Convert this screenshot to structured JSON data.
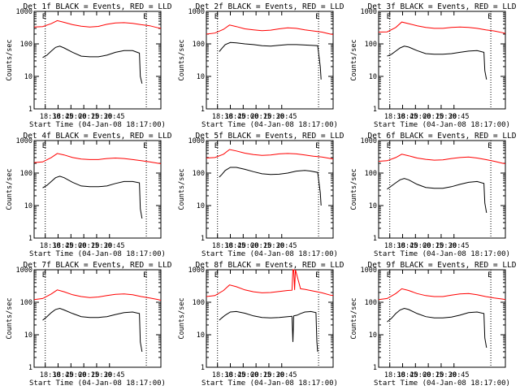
{
  "figure": {
    "xlabel": "Start Time (04-Jan-08 18:17:00)",
    "ylabel": "Counts/sec",
    "marker": "E",
    "x_ticks": [
      "18:30",
      "18:45",
      "20:00",
      "20:15",
      "20:30",
      "20:45"
    ]
  },
  "chart_data": [
    {
      "type": "line",
      "title": "Det 1f BLACK = Events, RED = LLD",
      "xlabel": "Start Time (04-Jan-08 18:17:00)",
      "ylabel": "Counts/sec",
      "yscale": "log",
      "ylim": [
        1,
        1000
      ],
      "y_ticks": [
        "1",
        "10",
        "100",
        "1000"
      ],
      "x_ticks": [
        "18:30",
        "18:45",
        "20:00",
        "20:15",
        "20:30",
        "20:45"
      ],
      "xlim_min": [
        0,
        148
      ],
      "event_markers_min": [
        13,
        131
      ],
      "grid": false,
      "series": [
        {
          "color": "#ff0000",
          "x_min": [
            0,
            10,
            20,
            27,
            35,
            45,
            55,
            65,
            75,
            85,
            95,
            105,
            115,
            125,
            135,
            145,
            148
          ],
          "values": [
            330,
            340,
            420,
            520,
            460,
            390,
            350,
            330,
            345,
            400,
            440,
            450,
            430,
            390,
            360,
            310,
            300
          ]
        },
        {
          "color": "#000000",
          "x_min": [
            10,
            15,
            20,
            25,
            30,
            35,
            45,
            55,
            65,
            75,
            85,
            95,
            105,
            115,
            123,
            124,
            126
          ],
          "values": [
            38,
            45,
            60,
            78,
            85,
            75,
            55,
            42,
            40,
            40,
            45,
            55,
            62,
            62,
            52,
            10,
            6
          ]
        }
      ]
    },
    {
      "type": "line",
      "title": "Det 2f BLACK = Events, RED = LLD",
      "xlabel": "Start Time (04-Jan-08 18:17:00)",
      "ylabel": "Counts/sec",
      "yscale": "log",
      "ylim": [
        1,
        1000
      ],
      "y_ticks": [
        "1",
        "10",
        "100",
        "1000"
      ],
      "x_ticks": [
        "18:30",
        "18:45",
        "20:00",
        "20:15",
        "20:30",
        "20:45"
      ],
      "xlim_min": [
        0,
        148
      ],
      "event_markers_min": [
        13,
        131
      ],
      "grid": false,
      "series": [
        {
          "color": "#ff0000",
          "x_min": [
            0,
            10,
            20,
            27,
            35,
            45,
            55,
            65,
            75,
            85,
            95,
            105,
            115,
            125,
            135,
            145,
            148
          ],
          "values": [
            200,
            215,
            280,
            380,
            340,
            290,
            270,
            255,
            265,
            290,
            310,
            300,
            270,
            250,
            230,
            200,
            195
          ]
        },
        {
          "color": "#000000",
          "x_min": [
            15,
            18,
            22,
            28,
            35,
            45,
            55,
            65,
            75,
            85,
            95,
            105,
            115,
            122,
            130,
            133,
            134
          ],
          "values": [
            58,
            72,
            95,
            110,
            108,
            100,
            95,
            88,
            85,
            90,
            95,
            95,
            92,
            90,
            88,
            20,
            8
          ]
        }
      ]
    },
    {
      "type": "line",
      "title": "Det 3f BLACK = Events, RED = LLD",
      "xlabel": "Start Time (04-Jan-08 18:17:00)",
      "ylabel": "Counts/sec",
      "yscale": "log",
      "ylim": [
        1,
        1000
      ],
      "y_ticks": [
        "1",
        "10",
        "100",
        "1000"
      ],
      "x_ticks": [
        "18:30",
        "18:45",
        "20:00",
        "20:15",
        "20:30",
        "20:45"
      ],
      "xlim_min": [
        0,
        148
      ],
      "event_markers_min": [
        13,
        131
      ],
      "grid": false,
      "series": [
        {
          "color": "#ff0000",
          "x_min": [
            0,
            10,
            20,
            27,
            35,
            45,
            55,
            65,
            75,
            85,
            95,
            105,
            115,
            125,
            135,
            145,
            148
          ],
          "values": [
            230,
            235,
            320,
            470,
            420,
            360,
            320,
            300,
            300,
            320,
            330,
            320,
            300,
            270,
            250,
            220,
            210
          ]
        },
        {
          "color": "#000000",
          "x_min": [
            10,
            15,
            20,
            25,
            30,
            35,
            45,
            55,
            65,
            75,
            85,
            95,
            105,
            115,
            123,
            124,
            126
          ],
          "values": [
            42,
            48,
            60,
            75,
            85,
            80,
            62,
            50,
            48,
            48,
            50,
            55,
            60,
            62,
            55,
            15,
            8
          ]
        }
      ]
    },
    {
      "type": "line",
      "title": "Det 4f BLACK = Events, RED = LLD",
      "xlabel": "Start Time (04-Jan-08 18:17:00)",
      "ylabel": "Counts/sec",
      "yscale": "log",
      "ylim": [
        1,
        1000
      ],
      "y_ticks": [
        "1",
        "10",
        "100",
        "1000"
      ],
      "x_ticks": [
        "18:30",
        "18:45",
        "20:00",
        "20:15",
        "20:30",
        "20:45"
      ],
      "xlim_min": [
        0,
        148
      ],
      "event_markers_min": [
        13,
        131
      ],
      "grid": false,
      "series": [
        {
          "color": "#ff0000",
          "x_min": [
            0,
            10,
            20,
            27,
            35,
            45,
            55,
            65,
            75,
            85,
            95,
            105,
            115,
            125,
            135,
            145,
            148
          ],
          "values": [
            210,
            220,
            300,
            400,
            360,
            300,
            270,
            260,
            260,
            280,
            290,
            280,
            260,
            240,
            220,
            200,
            195
          ]
        },
        {
          "color": "#000000",
          "x_min": [
            10,
            15,
            20,
            25,
            30,
            35,
            45,
            55,
            65,
            75,
            85,
            95,
            105,
            115,
            123,
            124,
            126
          ],
          "values": [
            35,
            42,
            55,
            72,
            80,
            72,
            52,
            40,
            38,
            38,
            40,
            48,
            55,
            55,
            50,
            8,
            4
          ]
        }
      ]
    },
    {
      "type": "line",
      "title": "Det 5f BLACK = Events, RED = LLD",
      "xlabel": "Start Time (04-Jan-08 18:17:00)",
      "ylabel": "Counts/sec",
      "yscale": "log",
      "ylim": [
        1,
        1000
      ],
      "y_ticks": [
        "1",
        "10",
        "100",
        "1000"
      ],
      "x_ticks": [
        "18:30",
        "18:45",
        "20:00",
        "20:15",
        "20:30",
        "20:45"
      ],
      "xlim_min": [
        0,
        148
      ],
      "event_markers_min": [
        13,
        131
      ],
      "grid": false,
      "series": [
        {
          "color": "#ff0000",
          "x_min": [
            0,
            10,
            20,
            27,
            35,
            45,
            55,
            65,
            75,
            85,
            95,
            105,
            115,
            125,
            135,
            145,
            148
          ],
          "values": [
            290,
            300,
            380,
            530,
            480,
            410,
            370,
            350,
            360,
            390,
            400,
            390,
            360,
            330,
            310,
            280,
            270
          ]
        },
        {
          "color": "#000000",
          "x_min": [
            15,
            18,
            22,
            28,
            35,
            45,
            55,
            65,
            75,
            85,
            95,
            105,
            115,
            122,
            130,
            133,
            134
          ],
          "values": [
            75,
            90,
            120,
            150,
            150,
            130,
            110,
            95,
            90,
            92,
            100,
            115,
            120,
            115,
            105,
            25,
            10
          ]
        }
      ]
    },
    {
      "type": "line",
      "title": "Det 6f BLACK = Events, RED = LLD",
      "xlabel": "Start Time (04-Jan-08 18:17:00)",
      "ylabel": "Counts/sec",
      "yscale": "log",
      "ylim": [
        1,
        1000
      ],
      "y_ticks": [
        "1",
        "10",
        "100",
        "1000"
      ],
      "x_ticks": [
        "18:30",
        "18:45",
        "20:00",
        "20:15",
        "20:30",
        "20:45"
      ],
      "xlim_min": [
        0,
        148
      ],
      "event_markers_min": [
        13,
        131
      ],
      "grid": false,
      "series": [
        {
          "color": "#ff0000",
          "x_min": [
            0,
            10,
            20,
            27,
            35,
            45,
            55,
            65,
            75,
            85,
            95,
            105,
            115,
            125,
            135,
            145,
            148
          ],
          "values": [
            230,
            240,
            300,
            380,
            340,
            290,
            265,
            250,
            255,
            280,
            300,
            310,
            290,
            260,
            230,
            200,
            195
          ]
        },
        {
          "color": "#000000",
          "x_min": [
            10,
            15,
            20,
            25,
            30,
            35,
            45,
            55,
            65,
            75,
            85,
            95,
            105,
            115,
            123,
            124,
            126
          ],
          "values": [
            32,
            40,
            50,
            62,
            68,
            62,
            45,
            36,
            34,
            34,
            38,
            45,
            52,
            55,
            48,
            12,
            6
          ]
        }
      ]
    },
    {
      "type": "line",
      "title": "Det 7f BLACK = Events, RED = LLD",
      "xlabel": "Start Time (04-Jan-08 18:17:00)",
      "ylabel": "Counts/sec",
      "yscale": "log",
      "ylim": [
        1,
        1000
      ],
      "y_ticks": [
        "1",
        "10",
        "100",
        "1000"
      ],
      "x_ticks": [
        "18:30",
        "18:45",
        "20:00",
        "20:15",
        "20:30",
        "20:45"
      ],
      "xlim_min": [
        0,
        148
      ],
      "event_markers_min": [
        13,
        131
      ],
      "grid": false,
      "series": [
        {
          "color": "#ff0000",
          "x_min": [
            0,
            10,
            20,
            27,
            35,
            45,
            55,
            65,
            75,
            85,
            95,
            105,
            115,
            125,
            135,
            145,
            148
          ],
          "values": [
            120,
            130,
            180,
            240,
            210,
            170,
            150,
            140,
            145,
            160,
            175,
            180,
            170,
            150,
            135,
            120,
            115
          ]
        },
        {
          "color": "#000000",
          "x_min": [
            10,
            15,
            20,
            25,
            30,
            35,
            45,
            55,
            65,
            75,
            85,
            95,
            105,
            115,
            123,
            124,
            126
          ],
          "values": [
            28,
            36,
            48,
            60,
            65,
            58,
            45,
            36,
            34,
            34,
            36,
            42,
            48,
            50,
            45,
            6,
            3
          ]
        }
      ]
    },
    {
      "type": "line",
      "title": "Det 8f BLACK = Events, RED = LLD",
      "xlabel": "Start Time (04-Jan-08 18:17:00)",
      "ylabel": "Counts/sec",
      "yscale": "log",
      "ylim": [
        1,
        1000
      ],
      "y_ticks": [
        "1",
        "10",
        "100",
        "1000"
      ],
      "x_ticks": [
        "18:30",
        "18:45",
        "20:00",
        "20:15",
        "20:30",
        "20:45"
      ],
      "xlim_min": [
        0,
        148
      ],
      "event_markers_min": [
        13,
        131
      ],
      "grid": false,
      "series": [
        {
          "color": "#ff0000",
          "x_min": [
            0,
            10,
            20,
            27,
            35,
            45,
            55,
            65,
            75,
            85,
            95,
            100,
            101,
            102,
            103,
            104,
            110,
            115,
            125,
            135,
            145,
            148
          ],
          "values": [
            150,
            160,
            230,
            340,
            300,
            240,
            210,
            195,
            200,
            215,
            230,
            235,
            1000,
            1000,
            240,
            1000,
            260,
            250,
            220,
            195,
            165,
            160
          ]
        },
        {
          "color": "#000000",
          "x_min": [
            15,
            18,
            22,
            28,
            35,
            45,
            55,
            65,
            75,
            85,
            95,
            100,
            101,
            102,
            106,
            110,
            115,
            122,
            128,
            129,
            130
          ],
          "values": [
            28,
            33,
            40,
            50,
            52,
            46,
            38,
            34,
            33,
            34,
            36,
            37,
            6,
            38,
            40,
            45,
            50,
            52,
            48,
            6,
            3
          ]
        }
      ]
    },
    {
      "type": "line",
      "title": "Det 9f BLACK = Events, RED = LLD",
      "xlabel": "Start Time (04-Jan-08 18:17:00)",
      "ylabel": "Counts/sec",
      "yscale": "log",
      "ylim": [
        1,
        1000
      ],
      "y_ticks": [
        "1",
        "10",
        "100",
        "1000"
      ],
      "x_ticks": [
        "18:30",
        "18:45",
        "20:00",
        "20:15",
        "20:30",
        "20:45"
      ],
      "xlim_min": [
        0,
        148
      ],
      "event_markers_min": [
        13,
        131
      ],
      "grid": false,
      "series": [
        {
          "color": "#ff0000",
          "x_min": [
            0,
            10,
            20,
            27,
            35,
            45,
            55,
            65,
            75,
            85,
            95,
            105,
            115,
            125,
            135,
            145,
            148
          ],
          "values": [
            120,
            130,
            185,
            260,
            230,
            185,
            160,
            150,
            150,
            165,
            180,
            185,
            170,
            150,
            135,
            125,
            120
          ]
        },
        {
          "color": "#000000",
          "x_min": [
            10,
            15,
            20,
            25,
            30,
            35,
            45,
            55,
            65,
            75,
            85,
            95,
            105,
            115,
            123,
            124,
            126
          ],
          "values": [
            25,
            32,
            45,
            58,
            65,
            60,
            45,
            36,
            33,
            33,
            35,
            40,
            48,
            50,
            45,
            8,
            4
          ]
        }
      ]
    }
  ]
}
